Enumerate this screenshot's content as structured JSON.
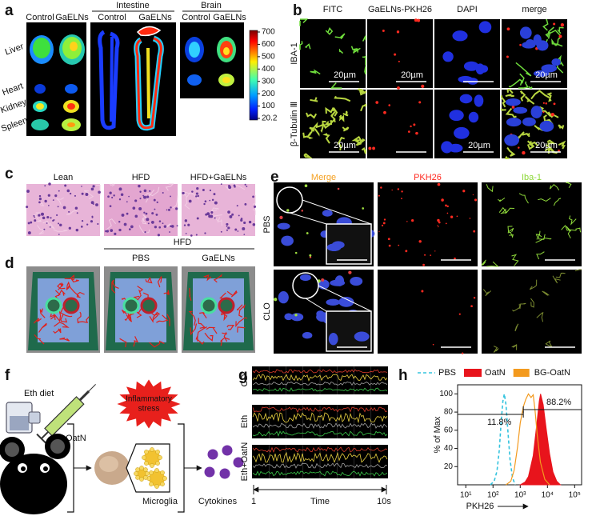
{
  "figure": {
    "a": {
      "label": "a",
      "liver_panel": {
        "control": "Control",
        "treated": "GaELNs"
      },
      "intestine": {
        "title": "Intestine",
        "control": "Control",
        "treated": "GaELNs"
      },
      "brain": {
        "title": "Brain",
        "control": "Control",
        "treated": "GaELNs"
      },
      "organs": [
        "Liver",
        "Heart",
        "Kidney",
        "Spleen"
      ],
      "colorbar_ticks": [
        "700",
        "600",
        "500",
        "400",
        "300",
        "200",
        "100",
        "20.2"
      ]
    },
    "b": {
      "label": "b",
      "columns": [
        "FITC",
        "GaELNs-PKH26",
        "DAPI",
        "merge"
      ],
      "rows": [
        "IBA-1",
        "β-Tubulin Ⅲ"
      ],
      "scale_bar": "20µm"
    },
    "c": {
      "label": "c",
      "columns": [
        "Lean",
        "HFD",
        "HFD+GaELNs"
      ]
    },
    "d": {
      "label": "d",
      "group": "HFD",
      "columns": [
        "PBS",
        "GaELNs"
      ]
    },
    "e": {
      "label": "e",
      "columns": [
        "Merge",
        "PKH26",
        "Iba-1"
      ],
      "rows": [
        "PBS",
        "CLO"
      ]
    },
    "f": {
      "label": "f",
      "diet": "Eth diet",
      "treatment": "OatN",
      "stress": [
        "Inflammatory",
        "stress"
      ],
      "cell": "Microglia",
      "output": "Cytokines"
    },
    "g": {
      "label": "g",
      "rows": [
        "CD",
        "Eth",
        "Eth+OatN"
      ],
      "axis": {
        "start": "1",
        "label": "Time",
        "end": "10s"
      }
    },
    "h": {
      "label": "h"
    }
  },
  "chart_data": {
    "type": "area",
    "xscale": "log",
    "xlim": [
      5,
      180000
    ],
    "ylim": [
      0,
      110
    ],
    "xticks": [
      {
        "value": 10,
        "label": "10¹"
      },
      {
        "value": 100,
        "label": "10²"
      },
      {
        "value": 1000,
        "label": "10³"
      },
      {
        "value": 10000,
        "label": "10⁴"
      },
      {
        "value": 100000,
        "label": "10⁵"
      }
    ],
    "yticks": [
      20,
      40,
      60,
      80,
      100
    ],
    "xlabel": "PKH26",
    "ylabel": "% of Max",
    "series": [
      {
        "name": "PBS",
        "color": "#33c3de",
        "style": "dashed",
        "x": [
          80,
          110,
          140,
          170,
          200,
          230,
          260,
          300,
          350,
          420,
          520,
          650
        ],
        "values": [
          0,
          4,
          15,
          38,
          70,
          92,
          100,
          88,
          60,
          28,
          8,
          0
        ]
      },
      {
        "name": "OatN",
        "color": "#e8141c",
        "style": "filled",
        "x": [
          1000,
          1500,
          2000,
          3000,
          4000,
          5000,
          5600,
          7000,
          9000,
          12000,
          16000,
          22000,
          30000
        ],
        "values": [
          0,
          3,
          9,
          32,
          65,
          92,
          100,
          88,
          62,
          34,
          14,
          4,
          0
        ]
      },
      {
        "name": "BG-OatN",
        "color": "#f39a1e",
        "style": "line",
        "x": [
          300,
          450,
          600,
          800,
          1000,
          1300,
          1600,
          2000,
          2500,
          3000,
          3500,
          4200,
          5500,
          8000,
          12000
        ],
        "values": [
          0,
          4,
          16,
          42,
          68,
          86,
          94,
          100,
          96,
          99,
          82,
          55,
          25,
          6,
          0
        ]
      }
    ],
    "gates": [
      {
        "value": 11.8,
        "label": "11.8%",
        "range": [
          5,
          1300
        ]
      },
      {
        "value": 88.2,
        "label": "88.2%",
        "range": [
          1300,
          180000
        ]
      }
    ]
  }
}
